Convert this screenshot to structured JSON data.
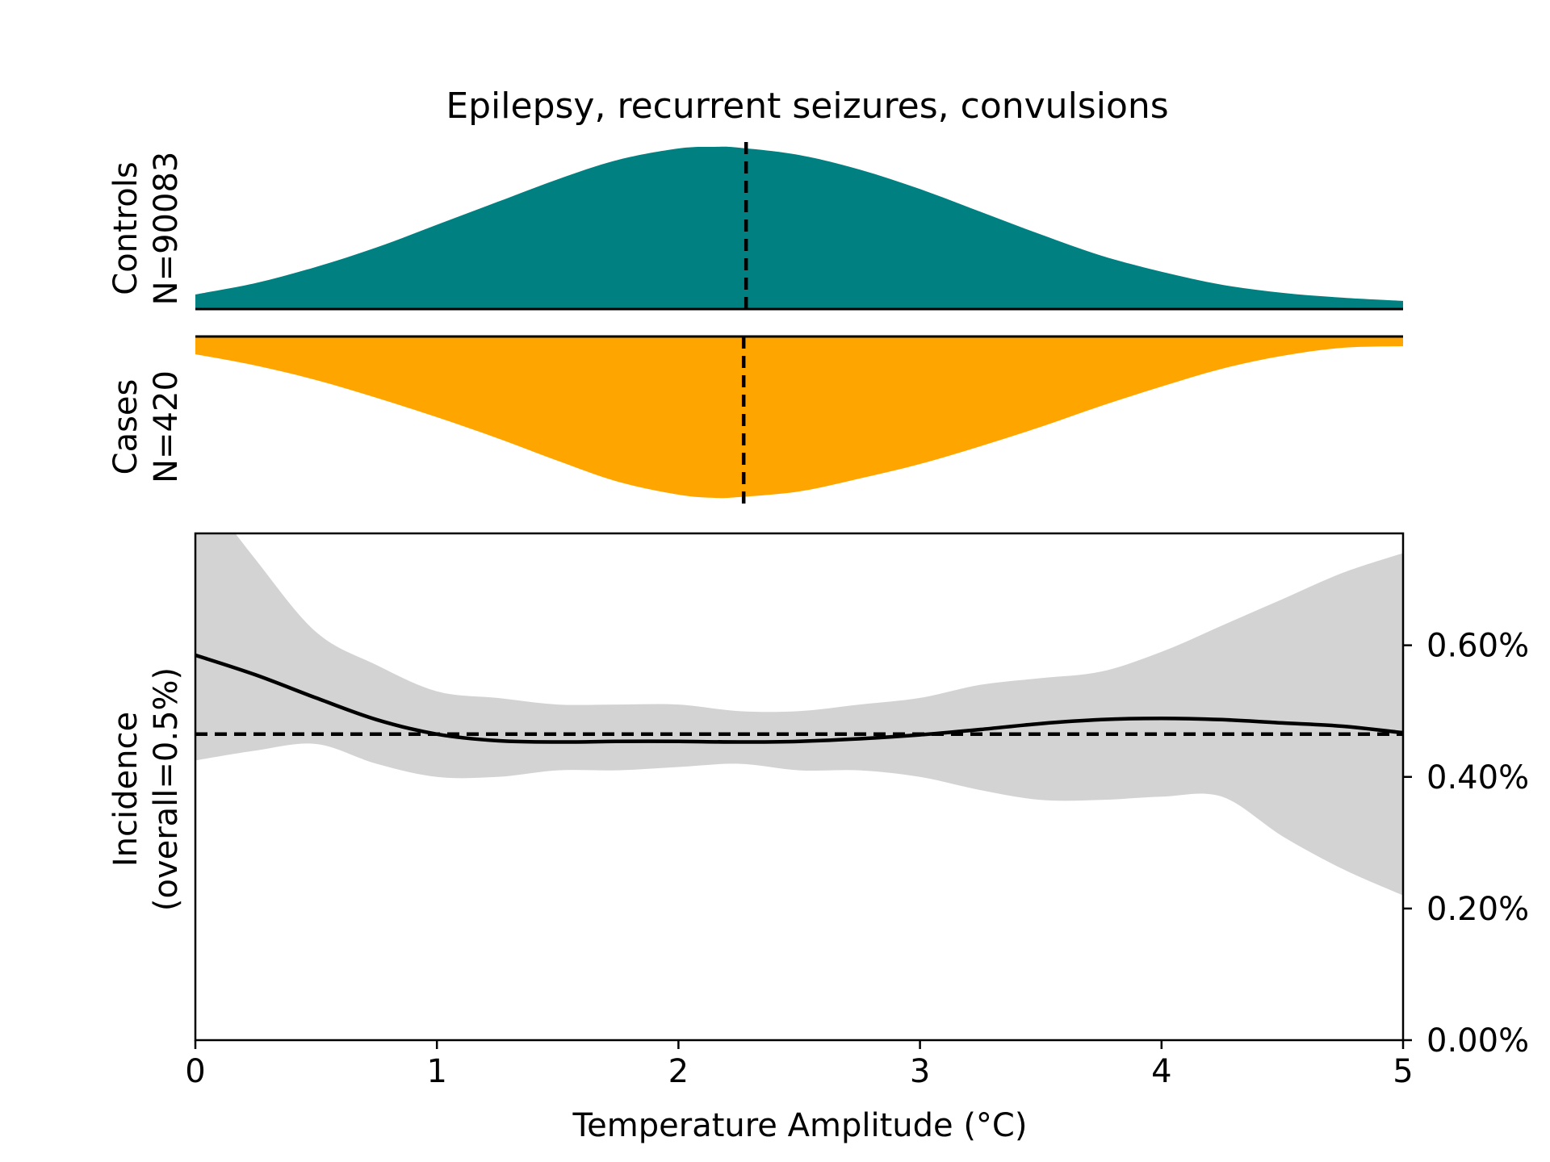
{
  "chart_data": {
    "type": "area",
    "title": "Epilepsy, recurrent seizures, convulsions",
    "xlabel": "Temperature Amplitude (°C)",
    "xlim": [
      0,
      5
    ],
    "x_ticks": [
      0,
      1,
      2,
      3,
      4,
      5
    ],
    "x_tick_labels": [
      "0",
      "1",
      "2",
      "3",
      "4",
      "5"
    ],
    "distributions": {
      "controls": {
        "label_line1": "Controls",
        "label_line2": "N=90083",
        "color": "#008080",
        "median": 2.28,
        "x": [
          0,
          0.25,
          0.5,
          0.75,
          1,
          1.25,
          1.5,
          1.75,
          2,
          2.15,
          2.25,
          2.5,
          2.75,
          3,
          3.25,
          3.5,
          3.75,
          4,
          4.25,
          4.5,
          4.75,
          5
        ],
        "density": [
          0.09,
          0.16,
          0.26,
          0.38,
          0.52,
          0.66,
          0.8,
          0.92,
          0.99,
          1.0,
          0.995,
          0.95,
          0.86,
          0.74,
          0.6,
          0.46,
          0.33,
          0.23,
          0.15,
          0.1,
          0.07,
          0.05
        ]
      },
      "cases": {
        "label_line1": "Cases",
        "label_line2": "N=420",
        "color": "#ffa500",
        "median": 2.27,
        "x": [
          0,
          0.25,
          0.5,
          0.75,
          1,
          1.25,
          1.5,
          1.75,
          2,
          2.15,
          2.25,
          2.5,
          2.75,
          3,
          3.25,
          3.5,
          3.75,
          4,
          4.25,
          4.5,
          4.75,
          5
        ],
        "density": [
          0.11,
          0.18,
          0.27,
          0.38,
          0.5,
          0.63,
          0.77,
          0.9,
          0.98,
          1.0,
          0.995,
          0.96,
          0.88,
          0.79,
          0.68,
          0.56,
          0.43,
          0.31,
          0.2,
          0.12,
          0.07,
          0.06
        ]
      }
    },
    "incidence": {
      "ylabel_line1": "Incidence",
      "ylabel_line2": "(overall=0.5%)",
      "ylim": [
        0,
        0.0077
      ],
      "y_ticks": [
        0,
        0.002,
        0.004,
        0.006
      ],
      "y_tick_labels": [
        "0.00%",
        "0.20%",
        "0.40%",
        "0.60%"
      ],
      "overall": 0.00465,
      "line_color": "#000000",
      "band_color": "#d3d3d3",
      "x": [
        0,
        0.25,
        0.5,
        0.75,
        1,
        1.25,
        1.5,
        1.75,
        2,
        2.25,
        2.5,
        2.75,
        3,
        3.25,
        3.5,
        3.75,
        4,
        4.25,
        4.5,
        4.75,
        5
      ],
      "estimate": [
        0.00585,
        0.00555,
        0.0052,
        0.00487,
        0.00465,
        0.00455,
        0.00453,
        0.00454,
        0.00454,
        0.00453,
        0.00454,
        0.00458,
        0.00464,
        0.00472,
        0.00481,
        0.00487,
        0.00489,
        0.00487,
        0.00482,
        0.00477,
        0.00467
      ],
      "upper": [
        0.0085,
        0.0073,
        0.0062,
        0.0057,
        0.0053,
        0.0052,
        0.0051,
        0.0051,
        0.0051,
        0.005,
        0.005,
        0.0051,
        0.0052,
        0.0054,
        0.0055,
        0.0056,
        0.0059,
        0.0063,
        0.0067,
        0.0071,
        0.0074
      ],
      "lower": [
        0.00425,
        0.0044,
        0.0045,
        0.0042,
        0.004,
        0.004,
        0.0041,
        0.0041,
        0.00415,
        0.0042,
        0.0041,
        0.0041,
        0.004,
        0.0038,
        0.00365,
        0.00365,
        0.0037,
        0.0037,
        0.0031,
        0.0026,
        0.0022
      ]
    }
  }
}
